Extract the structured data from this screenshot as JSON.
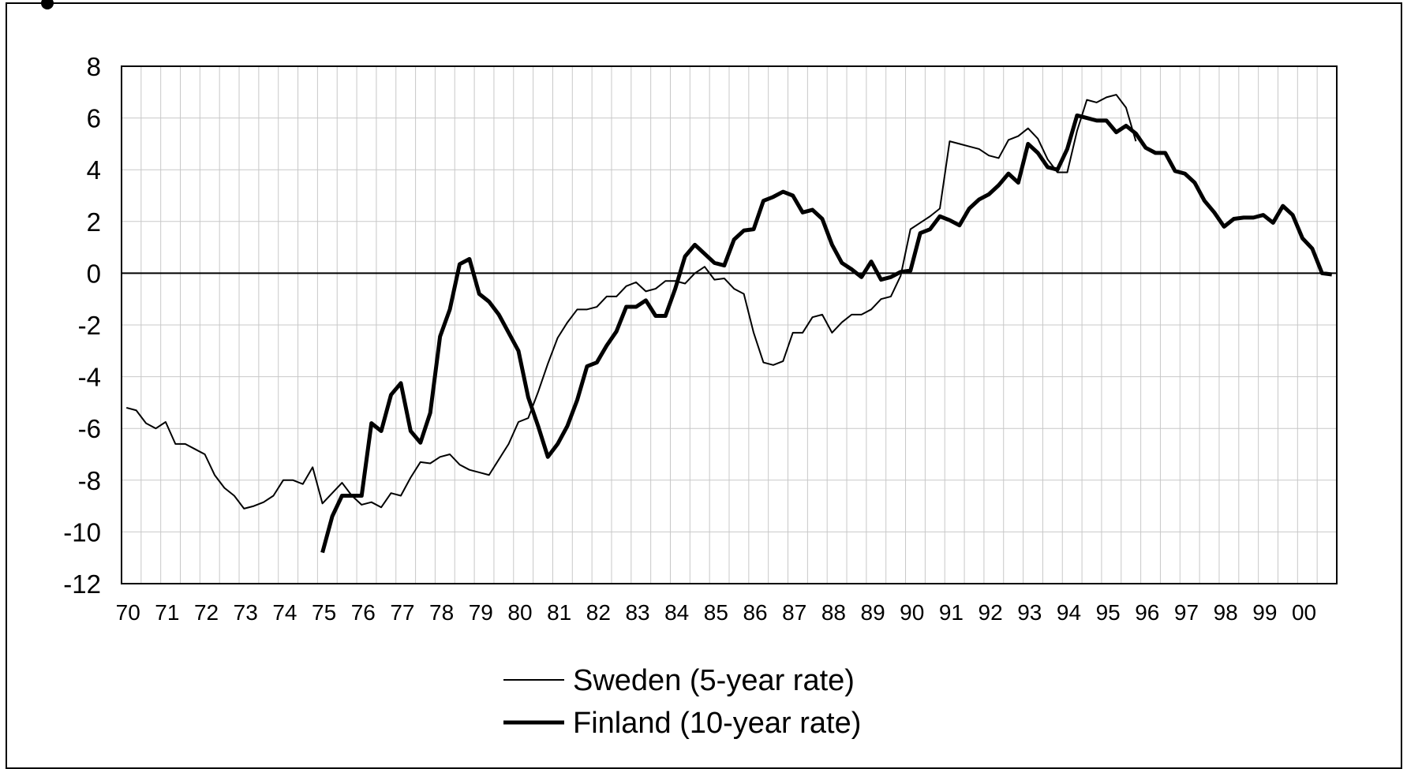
{
  "chart_data": {
    "type": "line",
    "categories": [
      "70",
      null,
      null,
      null,
      "71",
      null,
      null,
      null,
      "72",
      null,
      null,
      null,
      "73",
      null,
      null,
      null,
      "74",
      null,
      null,
      null,
      "75",
      null,
      null,
      null,
      "76",
      null,
      null,
      null,
      "77",
      null,
      null,
      null,
      "78",
      null,
      null,
      null,
      "79",
      null,
      null,
      null,
      "80",
      null,
      null,
      null,
      "81",
      null,
      null,
      null,
      "82",
      null,
      null,
      null,
      "83",
      null,
      null,
      null,
      "84",
      null,
      null,
      null,
      "85",
      null,
      null,
      null,
      "86",
      null,
      null,
      null,
      "87",
      null,
      null,
      null,
      "88",
      null,
      null,
      null,
      "89",
      null,
      null,
      null,
      "90",
      null,
      null,
      null,
      "91",
      null,
      null,
      null,
      "92",
      null,
      null,
      null,
      "93",
      null,
      null,
      null,
      "94",
      null,
      null,
      null,
      "95",
      null,
      null,
      null,
      "96",
      null,
      null,
      null,
      "97",
      null,
      null,
      null,
      "98",
      null,
      null,
      null,
      "99",
      null,
      null,
      null,
      "00",
      null,
      null,
      null
    ],
    "series": [
      {
        "name": "Sweden (5-year rate)",
        "color": "#000000",
        "width": "thin",
        "values": [
          -5.2,
          -5.3,
          -5.8,
          -6.0,
          -5.75,
          -6.6,
          -6.6,
          -6.8,
          -7.0,
          -7.8,
          -8.3,
          -8.6,
          -9.1,
          -9.0,
          -8.85,
          -8.6,
          -8.0,
          -8.0,
          -8.15,
          -7.5,
          -8.9,
          -8.5,
          -8.1,
          -8.6,
          -8.95,
          -8.85,
          -9.05,
          -8.5,
          -8.6,
          -7.9,
          -7.3,
          -7.35,
          -7.1,
          -7.0,
          -7.4,
          -7.6,
          -7.7,
          -7.8,
          -7.2,
          -6.6,
          -5.75,
          -5.6,
          -4.6,
          -3.5,
          -2.5,
          -1.9,
          -1.4,
          -1.4,
          -1.3,
          -0.9,
          -0.9,
          -0.5,
          -0.35,
          -0.7,
          -0.6,
          -0.3,
          -0.3,
          -0.4,
          0.0,
          0.25,
          -0.25,
          -0.2,
          -0.6,
          -0.8,
          -2.3,
          -3.45,
          -3.55,
          -3.4,
          -2.3,
          -2.3,
          -1.7,
          -1.6,
          -2.3,
          -1.9,
          -1.6,
          -1.6,
          -1.4,
          -1.0,
          -0.9,
          -0.1,
          1.7,
          1.95,
          2.2,
          2.5,
          5.1,
          5.0,
          4.9,
          4.8,
          4.55,
          4.45,
          5.15,
          5.3,
          5.6,
          5.2,
          4.4,
          3.9,
          3.9,
          5.5,
          6.7,
          6.6,
          6.8,
          6.9,
          6.4,
          5.1,
          null,
          null,
          null,
          null,
          null,
          null,
          null,
          null,
          null,
          null,
          null,
          null,
          null,
          null,
          null,
          null,
          null,
          null,
          null,
          null
        ]
      },
      {
        "name": "Finland (10-year rate)",
        "color": "#000000",
        "width": "thick",
        "values": [
          null,
          null,
          null,
          null,
          null,
          null,
          null,
          null,
          null,
          null,
          null,
          null,
          null,
          null,
          null,
          null,
          null,
          null,
          null,
          null,
          -10.8,
          -9.4,
          -8.6,
          -8.6,
          -8.6,
          -5.8,
          -6.1,
          -4.7,
          -4.25,
          -6.1,
          -6.55,
          -5.4,
          -2.45,
          -1.4,
          0.35,
          0.55,
          -0.8,
          -1.1,
          -1.6,
          -2.3,
          -3.0,
          -4.8,
          -5.9,
          -7.1,
          -6.6,
          -5.9,
          -4.9,
          -3.6,
          -3.45,
          -2.8,
          -2.25,
          -1.3,
          -1.3,
          -1.05,
          -1.65,
          -1.65,
          -0.6,
          0.65,
          1.1,
          0.75,
          0.4,
          0.3,
          1.3,
          1.65,
          1.7,
          2.8,
          2.95,
          3.15,
          3.0,
          2.35,
          2.45,
          2.1,
          1.1,
          0.4,
          0.15,
          -0.15,
          0.45,
          -0.25,
          -0.15,
          0.05,
          0.1,
          1.55,
          1.7,
          2.2,
          2.05,
          1.85,
          2.5,
          2.85,
          3.05,
          3.4,
          3.85,
          3.5,
          5.0,
          4.65,
          4.1,
          4.0,
          4.8,
          6.1,
          6.0,
          5.9,
          5.9,
          5.45,
          5.7,
          5.4,
          4.85,
          4.65,
          4.65,
          3.95,
          3.85,
          3.5,
          2.8,
          2.35,
          1.8,
          2.1,
          2.15,
          2.15,
          2.25,
          1.95,
          2.6,
          2.25,
          1.35,
          0.95,
          0.0,
          -0.05
        ]
      }
    ],
    "ylim": [
      -12,
      8
    ],
    "yticks": [
      -12,
      -10,
      -8,
      -6,
      -4,
      -2,
      0,
      2,
      4,
      6,
      8
    ],
    "grid": true,
    "legend": "bottom"
  }
}
